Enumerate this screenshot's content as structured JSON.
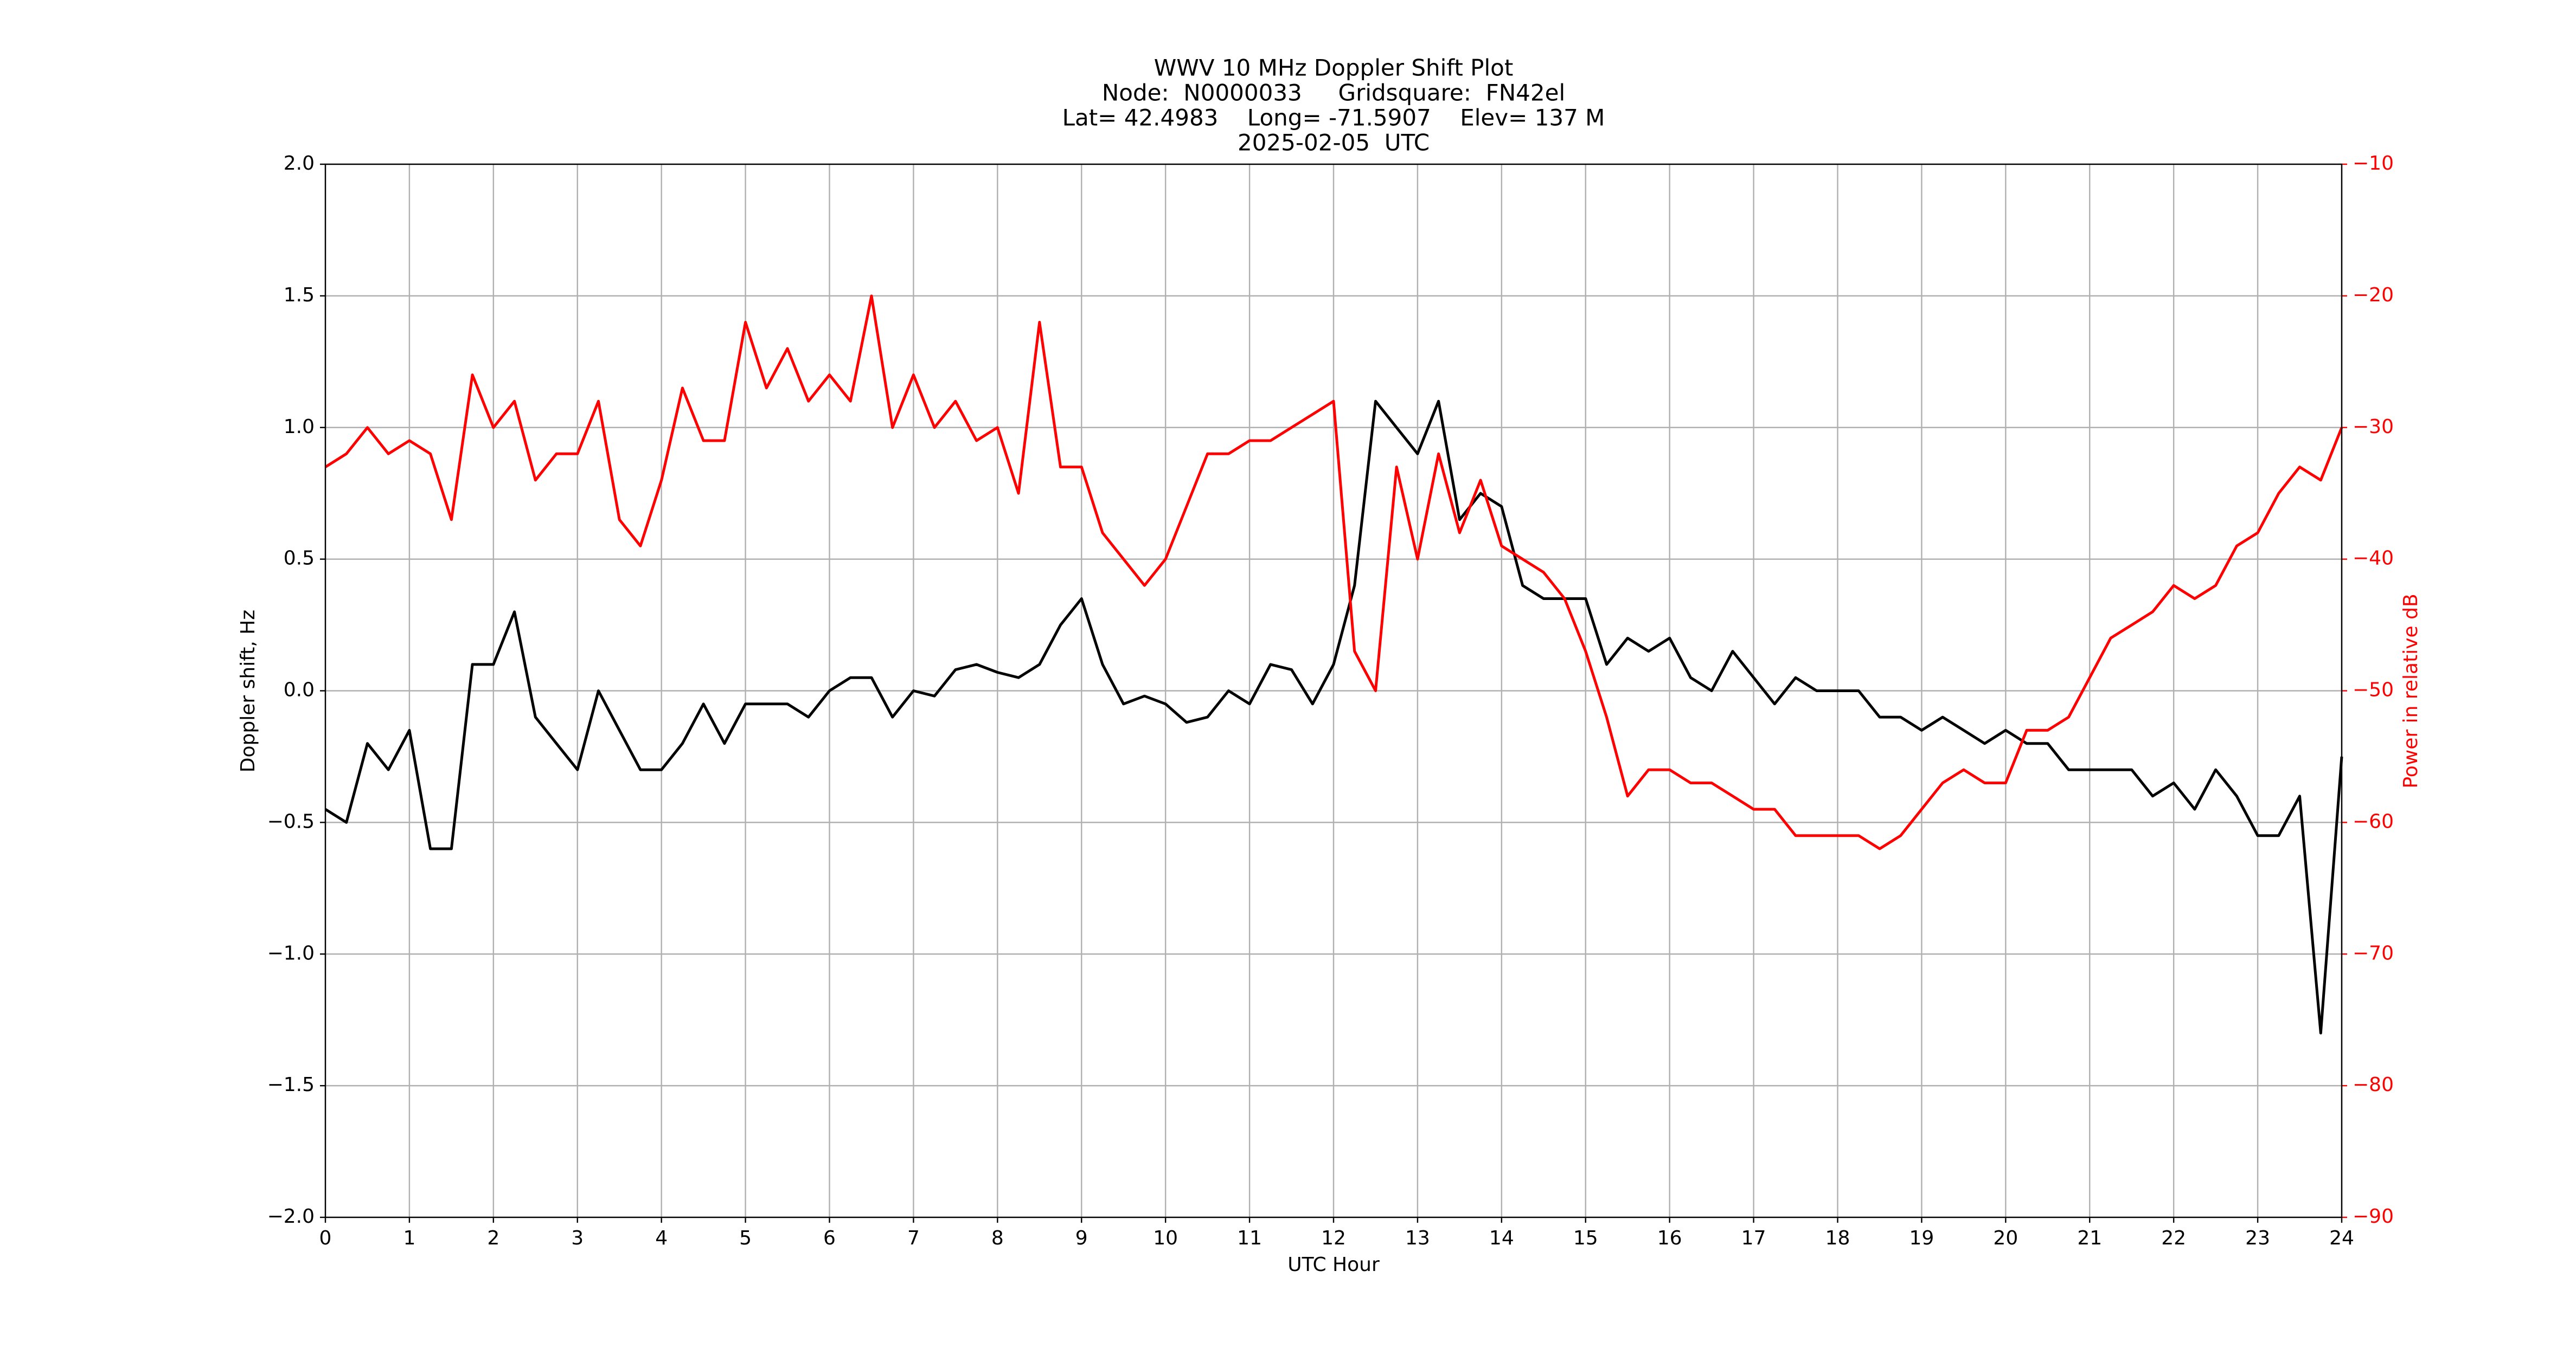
{
  "chart_data": {
    "type": "line",
    "title": [
      "WWV 10 MHz Doppler Shift Plot",
      "Node:  N0000033     Gridsquare:  FN42el",
      "Lat= 42.4983    Long= -71.5907    Elev= 137 M",
      "2025-02-05  UTC"
    ],
    "x_label": "UTC Hour",
    "y_label": "Doppler shift, Hz",
    "y2_label": "Power in relative dB",
    "xlim": [
      0,
      24
    ],
    "xticks": [
      0,
      1,
      2,
      3,
      4,
      5,
      6,
      7,
      8,
      9,
      10,
      11,
      12,
      13,
      14,
      15,
      16,
      17,
      18,
      19,
      20,
      21,
      22,
      23,
      24
    ],
    "ylim": [
      -2,
      2
    ],
    "yticks": [
      {
        "value": -2,
        "label": "−2.0"
      },
      {
        "value": -1.5,
        "label": "−1.5"
      },
      {
        "value": -1,
        "label": "−1.0"
      },
      {
        "value": -0.5,
        "label": "−0.5"
      },
      {
        "value": 0,
        "label": "0.0"
      },
      {
        "value": 0.5,
        "label": "0.5"
      },
      {
        "value": 1,
        "label": "1.0"
      },
      {
        "value": 1.5,
        "label": "1.5"
      },
      {
        "value": 2,
        "label": "2.0"
      }
    ],
    "y2lim": [
      -90,
      -10
    ],
    "y2ticks": [
      {
        "value": -90,
        "label": "−90"
      },
      {
        "value": -80,
        "label": "−80"
      },
      {
        "value": -70,
        "label": "−70"
      },
      {
        "value": -60,
        "label": "−60"
      },
      {
        "value": -50,
        "label": "−50"
      },
      {
        "value": -40,
        "label": "−40"
      },
      {
        "value": -30,
        "label": "−30"
      },
      {
        "value": -20,
        "label": "−20"
      },
      {
        "value": -10,
        "label": "−10"
      }
    ],
    "y2_color": "#ff0000",
    "grid": true,
    "x": [
      0,
      0.25,
      0.5,
      0.75,
      1,
      1.25,
      1.5,
      1.75,
      2,
      2.25,
      2.5,
      2.75,
      3,
      3.25,
      3.5,
      3.75,
      4,
      4.25,
      4.5,
      4.75,
      5,
      5.25,
      5.5,
      5.75,
      6,
      6.25,
      6.5,
      6.75,
      7,
      7.25,
      7.5,
      7.75,
      8,
      8.25,
      8.5,
      8.75,
      9,
      9.25,
      9.5,
      9.75,
      10,
      10.25,
      10.5,
      10.75,
      11,
      11.25,
      11.5,
      11.75,
      12,
      12.25,
      12.5,
      12.75,
      13,
      13.25,
      13.5,
      13.75,
      14,
      14.25,
      14.5,
      14.75,
      15,
      15.25,
      15.5,
      15.75,
      16,
      16.25,
      16.5,
      16.75,
      17,
      17.25,
      17.5,
      17.75,
      18,
      18.25,
      18.5,
      18.75,
      19,
      19.25,
      19.5,
      19.75,
      20,
      20.25,
      20.5,
      20.75,
      21,
      21.25,
      21.5,
      21.75,
      22,
      22.25,
      22.5,
      22.75,
      23,
      23.25,
      23.5,
      23.75,
      24
    ],
    "series": [
      {
        "color": "#000000",
        "axis": "y",
        "values": [
          -0.45,
          -0.5,
          -0.2,
          -0.3,
          -0.15,
          -0.6,
          -0.6,
          0.1,
          0.1,
          0.3,
          -0.1,
          -0.2,
          -0.3,
          0,
          -0.15,
          -0.3,
          -0.3,
          -0.2,
          -0.05,
          -0.2,
          -0.05,
          -0.05,
          -0.05,
          -0.1,
          0,
          0.05,
          0.05,
          -0.1,
          0,
          -0.02,
          0.08,
          0.1,
          0.07,
          0.05,
          0.1,
          0.25,
          0.35,
          0.1,
          -0.05,
          -0.02,
          -0.05,
          -0.12,
          -0.1,
          0,
          -0.05,
          0.1,
          0.08,
          -0.05,
          0.1,
          0.4,
          1.1,
          1,
          0.9,
          1.1,
          0.65,
          0.75,
          0.7,
          0.4,
          0.35,
          0.35,
          0.35,
          0.1,
          0.2,
          0.15,
          0.2,
          0.05,
          0,
          0.15,
          0.05,
          -0.05,
          0.05,
          0,
          0,
          0,
          -0.1,
          -0.1,
          -0.15,
          -0.1,
          -0.15,
          -0.2,
          -0.15,
          -0.2,
          -0.2,
          -0.3,
          -0.3,
          -0.3,
          -0.3,
          -0.4,
          -0.35,
          -0.45,
          -0.3,
          -0.4,
          -0.55,
          -0.55,
          -0.4,
          -1.3,
          -0.25
        ]
      },
      {
        "color": "#ff0000",
        "axis": "y2",
        "values": [
          -33,
          -32,
          -30,
          -32,
          -31,
          -32,
          -37,
          -26,
          -30,
          -28,
          -34,
          -32,
          -32,
          -28,
          -37,
          -39,
          -34,
          -27,
          -31,
          -31,
          -22,
          -27,
          -24,
          -28,
          -26,
          -28,
          -20,
          -30,
          -26,
          -30,
          -28,
          -31,
          -30,
          -35,
          -22,
          -33,
          -33,
          -38,
          -40,
          -42,
          -40,
          -36,
          -32,
          -32,
          -31,
          -31,
          -30,
          -29,
          -28,
          -47,
          -50,
          -33,
          -40,
          -32,
          -38,
          -34,
          -39,
          -40,
          -41,
          -43,
          -47,
          -52,
          -58,
          -56,
          -56,
          -57,
          -57,
          -58,
          -59,
          -59,
          -61,
          -61,
          -61,
          -61,
          -62,
          -61,
          -59,
          -57,
          -56,
          -57,
          -57,
          -53,
          -53,
          -52,
          -49,
          -46,
          -45,
          -44,
          -42,
          -43,
          -42,
          -39,
          -38,
          -35,
          -33,
          -34,
          -30
        ]
      }
    ]
  }
}
